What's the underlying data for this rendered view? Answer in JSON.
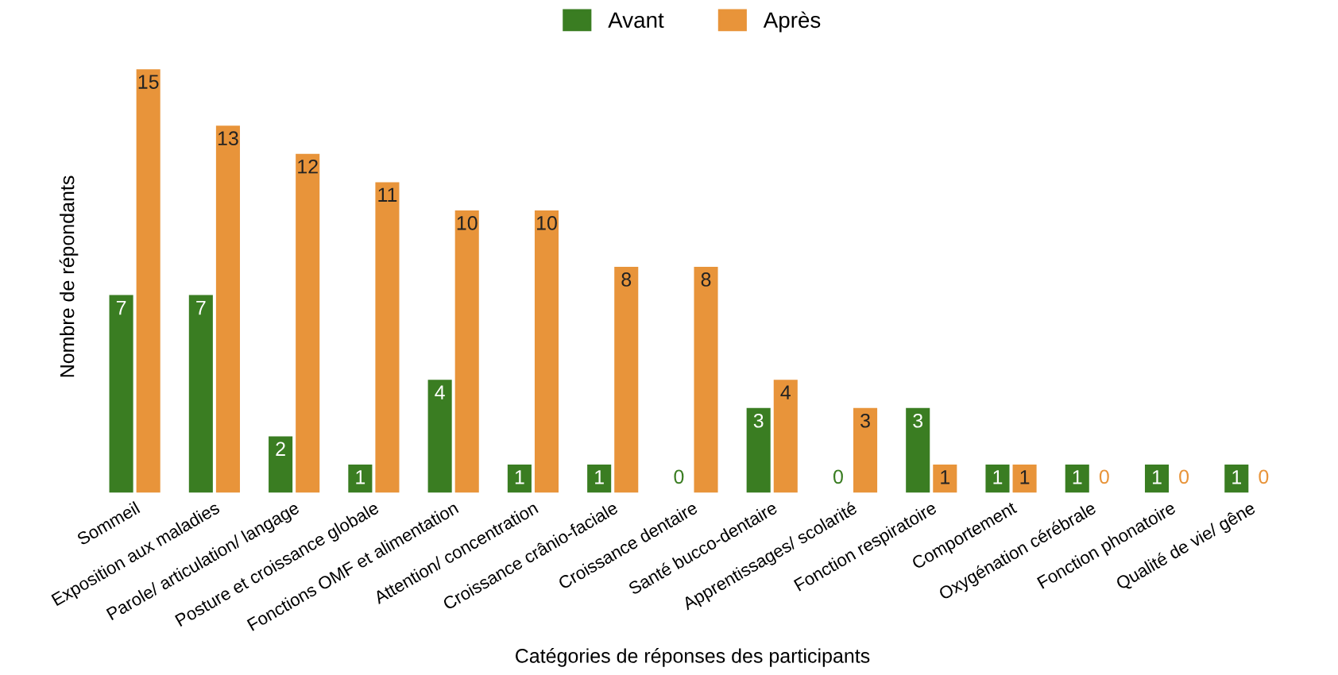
{
  "chart_data": {
    "type": "bar",
    "xlabel": "Catégories de réponses des participants",
    "ylabel": "Nombre de répondants",
    "categories": [
      "Sommeil",
      "Exposition aux maladies",
      "Parole/ articulation/ langage",
      "Posture et croissance globale",
      "Fonctions OMF et alimentation",
      "Attention/ concentration",
      "Croissance crânio-faciale",
      "Croissance dentaire",
      "Santé bucco-dentaire",
      "Apprentissages/ scolarité",
      "Fonction respiratoire",
      "Comportement",
      "Oxygénation cérébrale",
      "Fonction phonatoire",
      "Qualité de vie/ gêne"
    ],
    "series": [
      {
        "name": "Avant",
        "color": "#3a7d22",
        "values": [
          7,
          7,
          2,
          1,
          4,
          1,
          1,
          0,
          3,
          0,
          3,
          1,
          1,
          1,
          1
        ]
      },
      {
        "name": "Après",
        "color": "#e8943a",
        "values": [
          15,
          13,
          12,
          11,
          10,
          10,
          8,
          8,
          4,
          3,
          1,
          1,
          0,
          0,
          0
        ]
      }
    ],
    "data_labels": true,
    "legend": "top"
  }
}
